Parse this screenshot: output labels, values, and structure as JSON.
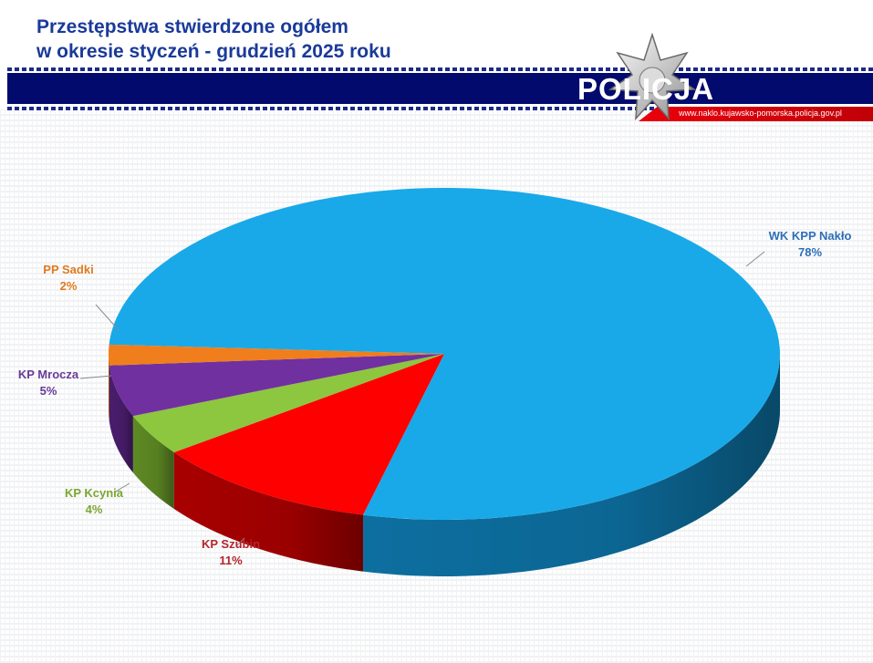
{
  "header": {
    "title_line1": "Przestępstwa stwierdzone ogółem",
    "title_line2": "w okresie styczeń - grudzień  2025 roku",
    "logo_text": "POLICJA",
    "url_text": "www.naklo.kujawsko-pomorska.policja.gov.pl"
  },
  "colors": {
    "title": "#1a3a9a",
    "band": "#020a6e",
    "accent_red": "#e9000b"
  },
  "chart_data": {
    "type": "pie",
    "style": "3d",
    "slices": [
      {
        "name": "WK KPP Nakło",
        "value": 78,
        "label": "78%",
        "color": "#19a9e8",
        "side_color": "#0d6fa0",
        "label_color": "#2e6fb8"
      },
      {
        "name": "KP Szubin",
        "value": 11,
        "label": "11%",
        "color": "#ff0000",
        "side_color": "#a80000",
        "label_color": "#b3262d"
      },
      {
        "name": "KP Kcynia",
        "value": 4,
        "label": "4%",
        "color": "#8dc63f",
        "side_color": "#5e8a24",
        "label_color": "#7aa632"
      },
      {
        "name": "KP Mrocza",
        "value": 5,
        "label": "5%",
        "color": "#7030a0",
        "side_color": "#4a1d6d",
        "label_color": "#6a3a9a"
      },
      {
        "name": "PP Sadki",
        "value": 2,
        "label": "2%",
        "color": "#f07e1c",
        "side_color": "#a85610",
        "label_color": "#e07a1f"
      }
    ]
  }
}
